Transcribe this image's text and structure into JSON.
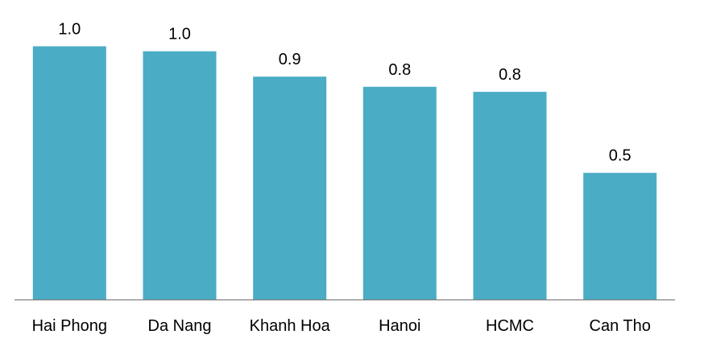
{
  "chart_data": {
    "type": "bar",
    "categories": [
      "Hai Phong",
      "Da Nang",
      "Khanh Hoa",
      "Hanoi",
      "HCMC",
      "Can Tho"
    ],
    "values": [
      1.0,
      0.98,
      0.88,
      0.84,
      0.82,
      0.5
    ],
    "value_labels": [
      "1.0",
      "1.0",
      "0.9",
      "0.8",
      "0.8",
      "0.5"
    ],
    "ylim": [
      0,
      1.1
    ],
    "grid": false,
    "legend": "none",
    "bar_color": "#4BACC6",
    "axis_color": "#7F7F7F"
  }
}
